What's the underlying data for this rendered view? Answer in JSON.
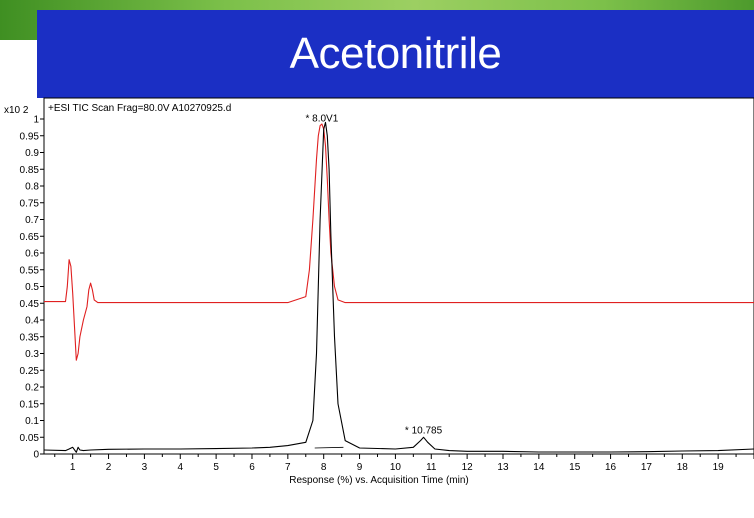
{
  "banner": {
    "title": "Acetonitrile",
    "background_color": "#1b2fc4",
    "accent_color": "#7cc04a"
  },
  "chart_data": {
    "type": "line",
    "title": "+ESI TIC Scan Frag=80.0V A10270925.d",
    "ylabel_multiplier": "x10 2",
    "xlabel": "Response (%) vs. Acquisition Time (min)",
    "xlim": [
      0.2,
      20.0
    ],
    "ylim": [
      0,
      1.0
    ],
    "x_ticks": [
      1,
      2,
      3,
      4,
      5,
      6,
      7,
      8,
      9,
      10,
      11,
      12,
      13,
      14,
      15,
      16,
      17,
      18,
      19
    ],
    "y_ticks": [
      "0",
      "0.05",
      "0.1",
      "0.15",
      "0.2",
      "0.25",
      "0.3",
      "0.35",
      "0.4",
      "0.45",
      "0.5",
      "0.55",
      "0.6",
      "0.65",
      "0.7",
      "0.75",
      "0.8",
      "0.85",
      "0.9",
      "0.95",
      "1"
    ],
    "annotations": [
      {
        "text": "* 8.0V1",
        "x": 7.95,
        "y": 0.98
      },
      {
        "text": "* 10.785",
        "x": 10.785,
        "y": 0.05
      }
    ],
    "series": [
      {
        "color": "#e02020",
        "x": [
          0.2,
          0.8,
          0.85,
          0.9,
          0.95,
          1.0,
          1.05,
          1.1,
          1.15,
          1.2,
          1.3,
          1.4,
          1.45,
          1.5,
          1.55,
          1.6,
          1.7,
          1.8,
          2.0,
          3.0,
          5.0,
          7.0,
          7.5,
          7.6,
          7.7,
          7.8,
          7.85,
          7.9,
          7.95,
          8.0,
          8.05,
          8.1,
          8.15,
          8.2,
          8.3,
          8.4,
          8.6,
          9.0,
          10.0,
          11.0,
          13.0,
          15.0,
          17.0,
          18.0,
          19.0,
          20.0
        ],
        "y": [
          0.455,
          0.455,
          0.5,
          0.58,
          0.56,
          0.48,
          0.38,
          0.28,
          0.3,
          0.35,
          0.4,
          0.44,
          0.49,
          0.51,
          0.49,
          0.46,
          0.452,
          0.452,
          0.452,
          0.452,
          0.452,
          0.452,
          0.47,
          0.55,
          0.7,
          0.88,
          0.95,
          0.98,
          0.985,
          0.97,
          0.92,
          0.82,
          0.7,
          0.6,
          0.5,
          0.46,
          0.452,
          0.452,
          0.452,
          0.452,
          0.452,
          0.452,
          0.452,
          0.452,
          0.452,
          0.452
        ]
      },
      {
        "color": "#000000",
        "x": [
          0.2,
          0.8,
          0.9,
          1.0,
          1.1,
          1.15,
          1.2,
          1.3,
          1.5,
          2.0,
          3.0,
          4.0,
          5.0,
          6.0,
          6.5,
          7.0,
          7.5,
          7.7,
          7.8,
          7.9,
          8.0,
          8.05,
          8.1,
          8.15,
          8.2,
          8.3,
          8.4,
          8.6,
          9.0,
          10.0,
          10.5,
          10.7,
          10.785,
          10.9,
          11.1,
          11.5,
          12.0,
          13.0,
          14.0,
          15.0,
          16.0,
          17.0,
          18.0,
          19.0,
          20.0
        ],
        "y": [
          0.012,
          0.01,
          0.015,
          0.02,
          0.005,
          0.02,
          0.012,
          0.01,
          0.012,
          0.014,
          0.015,
          0.015,
          0.016,
          0.018,
          0.02,
          0.025,
          0.035,
          0.1,
          0.3,
          0.7,
          0.97,
          0.99,
          0.95,
          0.85,
          0.65,
          0.35,
          0.15,
          0.04,
          0.018,
          0.015,
          0.02,
          0.04,
          0.05,
          0.035,
          0.015,
          0.01,
          0.008,
          0.008,
          0.006,
          0.006,
          0.006,
          0.007,
          0.009,
          0.01,
          0.015
        ]
      }
    ]
  }
}
